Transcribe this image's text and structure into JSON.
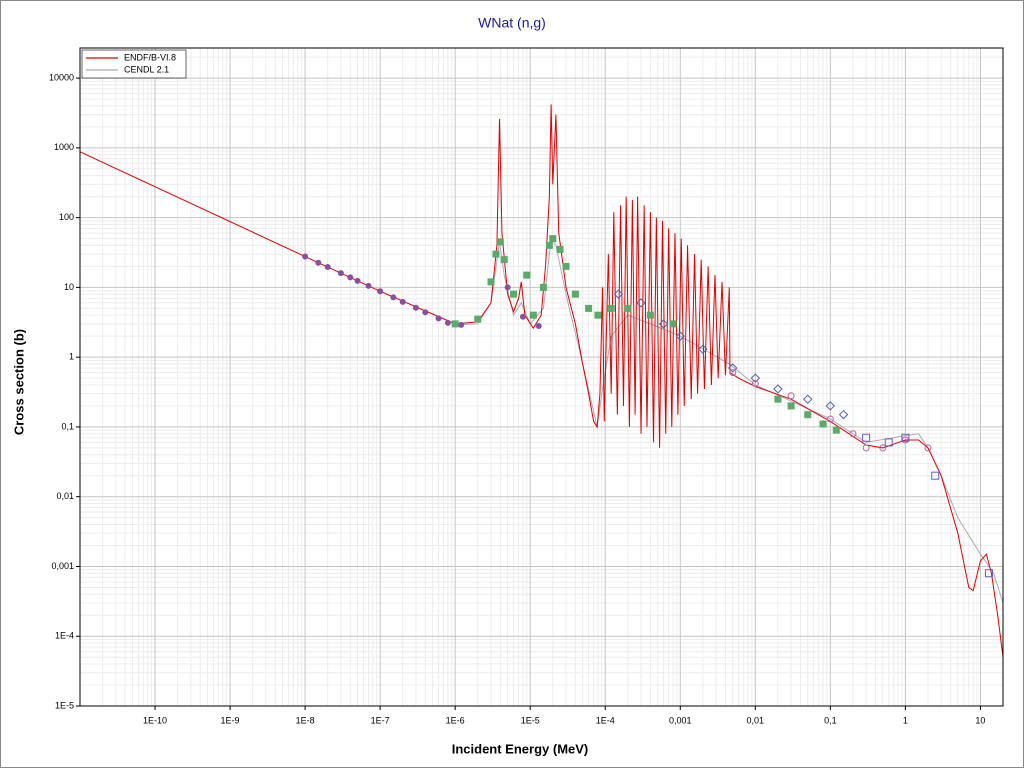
{
  "chart_data": {
    "type": "line",
    "title": "WNat (n,g)",
    "x_label": "Incident Energy (MeV)",
    "y_label": "Cross section (b)",
    "xscale": "log",
    "yscale": "log",
    "grid": true,
    "minor_grid": true,
    "legend": "upper left",
    "xlim": [
      1e-11,
      20
    ],
    "ylim": [
      1e-05,
      27000
    ],
    "xticks": [
      {
        "value": 1e-10,
        "label": "1E-10"
      },
      {
        "value": 1e-09,
        "label": "1E-9"
      },
      {
        "value": 1e-08,
        "label": "1E-8"
      },
      {
        "value": 1e-07,
        "label": "1E-7"
      },
      {
        "value": 1e-06,
        "label": "1E-6"
      },
      {
        "value": 1e-05,
        "label": "1E-5"
      },
      {
        "value": 0.0001,
        "label": "1E-4"
      },
      {
        "value": 0.001,
        "label": "0,001"
      },
      {
        "value": 0.01,
        "label": "0,01"
      },
      {
        "value": 0.1,
        "label": "0,1"
      },
      1,
      10
    ],
    "yticks": [
      {
        "value": 1e-05,
        "label": "1E-5"
      },
      {
        "value": 0.0001,
        "label": "1E-4"
      },
      {
        "value": 0.001,
        "label": "0,001"
      },
      {
        "value": 0.01,
        "label": "0,01"
      },
      {
        "value": 0.1,
        "label": "0,1"
      },
      1,
      10,
      100,
      1000,
      10000
    ],
    "series": [
      {
        "name": "ENDF/B-VI.8",
        "color": "#e00000",
        "x": [
          1e-11,
          1e-08,
          1e-07,
          1e-06,
          2e-06,
          3e-06,
          3.6e-06,
          3.9e-06,
          4.2e-06,
          5e-06,
          6e-06,
          7e-06,
          7.6e-06,
          8.5e-06,
          1.1e-05,
          1.4e-05,
          1.6e-05,
          1.8e-05,
          1.9e-05,
          2e-05,
          2.2e-05,
          2.4e-05,
          3e-05,
          4e-05,
          5e-05,
          6e-05,
          7e-05,
          7.8e-05,
          8.5e-05,
          9.2e-05,
          9.7e-05,
          0.00011,
          0.00012,
          0.00013,
          0.000145,
          0.00016,
          0.000175,
          0.00019,
          0.00021,
          0.00023,
          0.00025,
          0.00027,
          0.0003,
          0.00033,
          0.00036,
          0.0004,
          0.00044,
          0.00048,
          0.00053,
          0.00058,
          0.00064,
          0.0007,
          0.00077,
          0.00085,
          0.00093,
          0.00103,
          0.00113,
          0.00125,
          0.0014,
          0.00155,
          0.0017,
          0.0019,
          0.0021,
          0.00235,
          0.0026,
          0.0029,
          0.0032,
          0.0036,
          0.004,
          0.0045,
          0.0046,
          0.006,
          0.01,
          0.03,
          0.1,
          0.3,
          0.5,
          1,
          1.5,
          2,
          3,
          5,
          7,
          8,
          10,
          12,
          14,
          17,
          20
        ],
        "values": [
          877,
          27.7,
          8.8,
          3.0,
          3.2,
          6,
          40,
          2600,
          60,
          8,
          4.5,
          7,
          12,
          4,
          2.6,
          4,
          20,
          200,
          4200,
          300,
          3000,
          60,
          10,
          3,
          0.8,
          0.3,
          0.12,
          0.1,
          0.3,
          10,
          0.12,
          30,
          0.3,
          120,
          0.15,
          150,
          0.2,
          200,
          0.1,
          180,
          0.15,
          200,
          0.08,
          150,
          0.1,
          120,
          0.06,
          100,
          0.05,
          90,
          0.08,
          70,
          0.1,
          60,
          0.15,
          50,
          0.2,
          40,
          0.25,
          30,
          0.3,
          25,
          0.35,
          20,
          0.4,
          15,
          0.5,
          12,
          0.55,
          10,
          0.6,
          0.5,
          0.38,
          0.25,
          0.12,
          0.055,
          0.05,
          0.065,
          0.065,
          0.05,
          0.02,
          0.003,
          0.0005,
          0.00045,
          0.0012,
          0.0015,
          0.0008,
          0.0002,
          5e-05
        ]
      },
      {
        "name": "CENDL 2.1",
        "color": "#b0a8b8",
        "x": [
          1e-06,
          2e-06,
          3e-06,
          3.9e-06,
          4.5e-06,
          6e-06,
          7.6e-06,
          1e-05,
          1.5e-05,
          1.9e-05,
          2.2e-05,
          3e-05,
          5e-05,
          7.8e-05,
          9e-05,
          0.00012,
          0.0002,
          0.0004,
          0.001,
          0.0045,
          0.01,
          0.1,
          0.3,
          1,
          1.5,
          2,
          3,
          5,
          10,
          15,
          20
        ],
        "values": [
          2.9,
          3,
          6,
          45,
          15,
          4,
          6,
          3,
          5,
          50,
          40,
          8,
          0.8,
          0.1,
          0.3,
          2,
          4,
          3,
          2,
          0.8,
          0.4,
          0.13,
          0.06,
          0.075,
          0.08,
          0.05,
          0.02,
          0.005,
          0.0015,
          0.0008,
          0.0003
        ]
      }
    ],
    "experiments": [
      {
        "marker": "circle",
        "color": "#8a4fa0",
        "x": [
          1e-08,
          1.5e-08,
          2e-08,
          3e-08,
          4e-08,
          5e-08,
          7e-08,
          1e-07,
          1.5e-07,
          2e-07,
          3e-07,
          4e-07,
          6e-07,
          8e-07,
          1.2e-06,
          5e-06,
          8e-06,
          1.3e-05
        ],
        "values": [
          27.7,
          22.6,
          19.6,
          16,
          13.9,
          12.4,
          10.5,
          8.8,
          7.2,
          6.2,
          5.1,
          4.4,
          3.6,
          3.1,
          2.9,
          10,
          3.8,
          2.8
        ]
      },
      {
        "marker": "square",
        "color": "#5aaa6a",
        "x": [
          1e-06,
          2e-06,
          3e-06,
          3.5e-06,
          4e-06,
          4.5e-06,
          6e-06,
          9e-06,
          1.1e-05,
          1.5e-05,
          1.8e-05,
          2e-05,
          2.5e-05,
          3e-05,
          4e-05,
          6e-05,
          8e-05,
          0.00012,
          0.0002,
          0.0004,
          0.0008,
          0.02,
          0.03,
          0.05,
          0.08,
          0.12
        ],
        "values": [
          3,
          3.5,
          12,
          30,
          45,
          25,
          8,
          15,
          4,
          10,
          40,
          50,
          35,
          20,
          8,
          5,
          4,
          5,
          5,
          4,
          3,
          0.25,
          0.2,
          0.15,
          0.11,
          0.09
        ]
      },
      {
        "marker": "diamond",
        "color": "#5060b0",
        "x": [
          0.00015,
          0.0003,
          0.0006,
          0.001,
          0.002,
          0.005,
          0.01,
          0.02,
          0.05,
          0.1,
          0.15
        ],
        "values": [
          8,
          6,
          3,
          2,
          1.3,
          0.7,
          0.5,
          0.35,
          0.25,
          0.2,
          0.15
        ]
      },
      {
        "marker": "ring",
        "color": "#c060a0",
        "x": [
          0.005,
          0.01,
          0.03,
          0.1,
          0.2,
          0.3,
          0.5,
          1,
          2
        ],
        "values": [
          0.6,
          0.42,
          0.28,
          0.13,
          0.08,
          0.05,
          0.05,
          0.065,
          0.05
        ]
      },
      {
        "marker": "open-square",
        "color": "#6060c0",
        "x": [
          0.3,
          0.6,
          1,
          2.5,
          13
        ],
        "values": [
          0.07,
          0.06,
          0.07,
          0.02,
          0.0008
        ]
      }
    ]
  }
}
